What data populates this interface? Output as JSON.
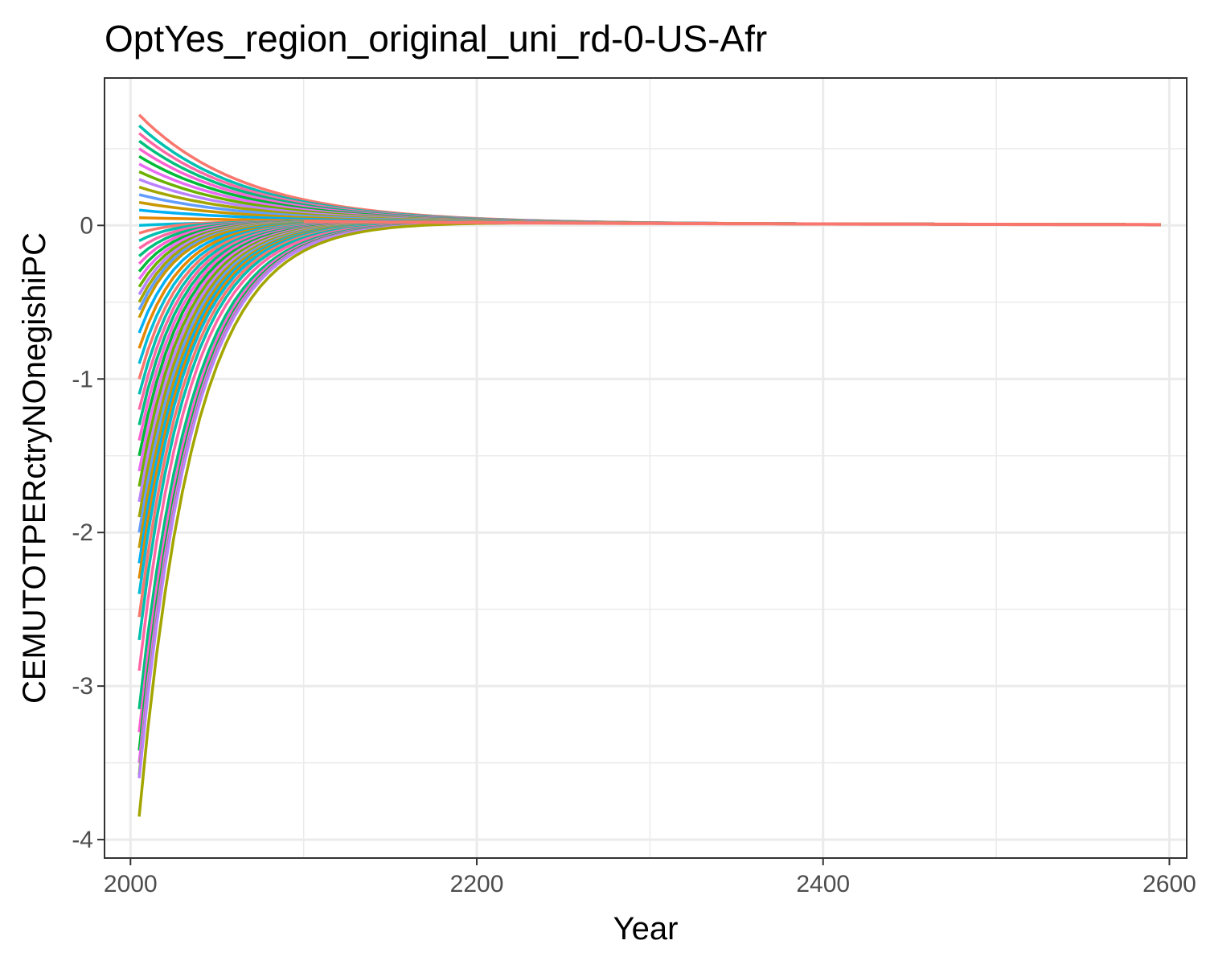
{
  "chart_data": {
    "type": "line",
    "title": "OptYes_region_original_uni_rd-0-US-Afr",
    "xlabel": "Year",
    "ylabel": "CEMUTOTPERctryNOnegishiPC",
    "xlim": [
      1985,
      2610
    ],
    "ylim": [
      -4.12,
      0.96
    ],
    "x_ticks": [
      2000,
      2200,
      2400,
      2600
    ],
    "x_tick_labels": [
      "2000",
      "2200",
      "2400",
      "2600"
    ],
    "y_ticks": [
      -4,
      -3,
      -2,
      -1,
      0
    ],
    "y_tick_labels": [
      "-4",
      "-3",
      "-2",
      "-1",
      "0"
    ],
    "x_start": 2005,
    "x_end": 2595,
    "grid": true,
    "legend": "none",
    "palette": [
      "#F8766D",
      "#E58700",
      "#C99800",
      "#A3A500",
      "#6BB100",
      "#00BA38",
      "#00BF7D",
      "#00C0AF",
      "#00BCD8",
      "#00B0F6",
      "#619CFF",
      "#B983FF",
      "#E76BF3",
      "#FD61D1",
      "#FF67A4"
    ],
    "series_start_values": [
      0.72,
      0.65,
      0.6,
      0.55,
      0.5,
      0.45,
      0.4,
      0.35,
      0.3,
      0.25,
      0.2,
      0.15,
      0.1,
      0.05,
      0.0,
      -0.05,
      -0.1,
      -0.15,
      -0.2,
      -0.25,
      -0.3,
      -0.35,
      -0.4,
      -0.45,
      -0.5,
      -0.55,
      -0.6,
      -0.7,
      -0.8,
      -0.9,
      -1.0,
      -1.1,
      -1.2,
      -1.3,
      -1.4,
      -1.5,
      -1.6,
      -1.7,
      -1.8,
      -1.9,
      -2.0,
      -2.1,
      -2.2,
      -2.3,
      -2.4,
      -2.55,
      -2.7,
      -2.9,
      -3.15,
      -3.3,
      -3.42,
      -3.5,
      -3.58,
      -3.6,
      -3.85
    ]
  }
}
